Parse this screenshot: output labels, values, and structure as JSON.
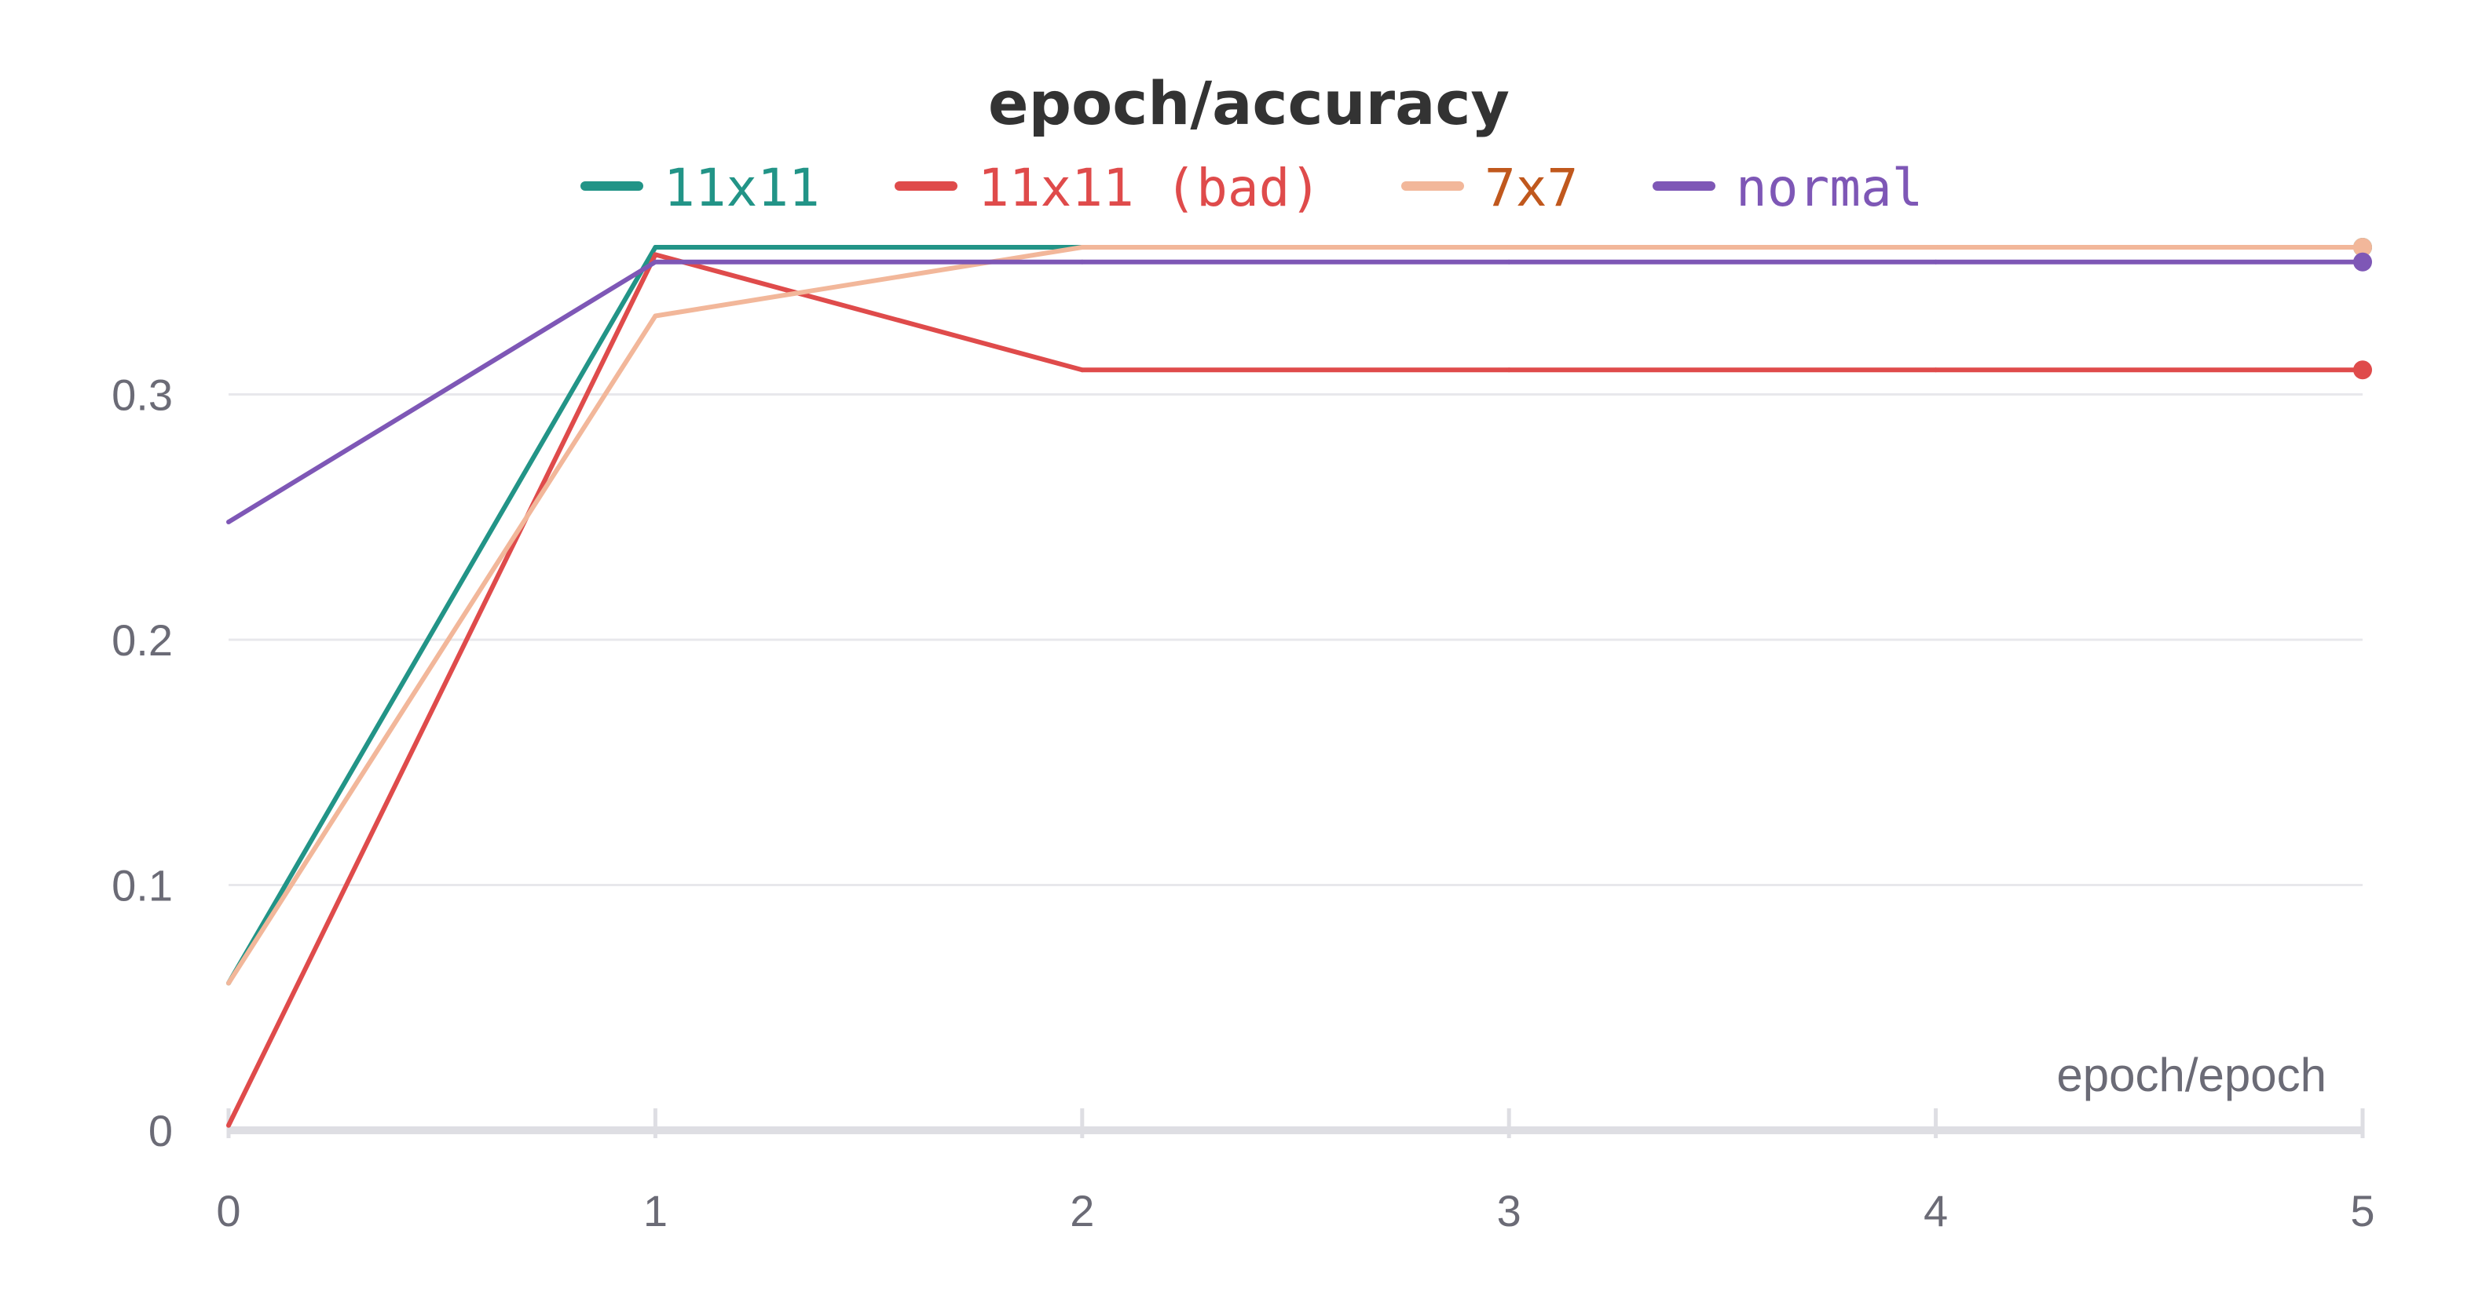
{
  "chart_data": {
    "type": "line",
    "title": "epoch/accuracy",
    "xlabel": "epoch/epoch",
    "ylabel": "",
    "x": [
      0,
      1,
      2,
      3,
      4,
      5
    ],
    "xlim": [
      0,
      5
    ],
    "ylim": [
      0,
      0.36
    ],
    "xticks": [
      "0",
      "1",
      "2",
      "3",
      "4",
      "5"
    ],
    "yticks": [
      "0",
      "0.1",
      "0.2",
      "0.3"
    ],
    "ytick_values": [
      0,
      0.1,
      0.2,
      0.3
    ],
    "grid": true,
    "legend_position": "top-center",
    "series": [
      {
        "name": "11x11",
        "color": "#229487",
        "label_color": "#229487",
        "values": [
          0.06,
          0.36,
          0.36,
          0.36,
          0.36,
          0.36
        ]
      },
      {
        "name": "11x11 (bad)",
        "color": "#df4b4b",
        "label_color": "#df4b4b",
        "values": [
          0.002,
          0.357,
          0.31,
          0.31,
          0.31,
          0.31
        ]
      },
      {
        "name": "7x7",
        "color": "#f2b79a",
        "label_color": "#c0581d",
        "values": [
          0.06,
          0.332,
          0.36,
          0.36,
          0.36,
          0.36
        ]
      },
      {
        "name": "normal",
        "color": "#7e57b6",
        "label_color": "#7e57b6",
        "values": [
          0.248,
          0.354,
          0.354,
          0.354,
          0.354,
          0.354
        ]
      }
    ]
  }
}
